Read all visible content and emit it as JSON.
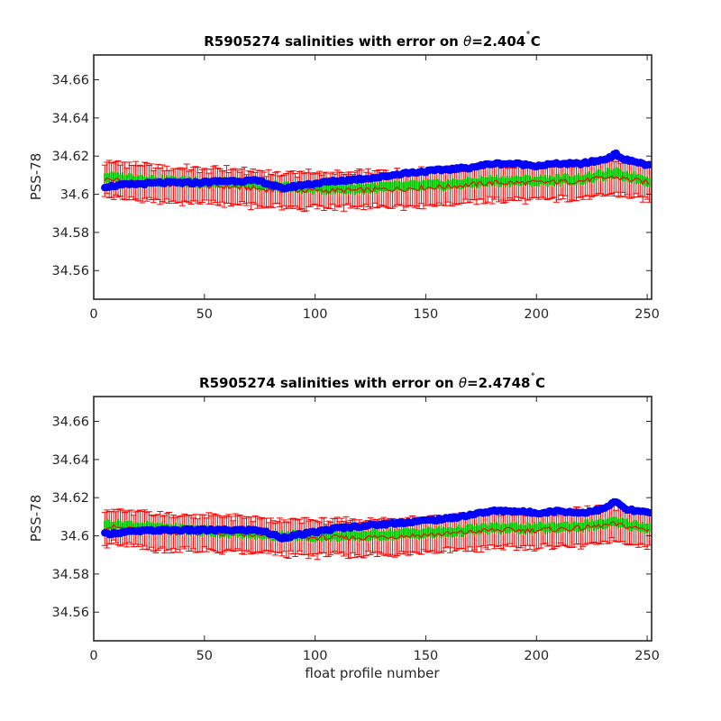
{
  "chart_data": [
    {
      "type": "scatter",
      "title_prefix": "R5905274 salinities with error on ",
      "title_theta": "θ",
      "title_value": "=2.404",
      "title_degree": "˚",
      "title_unit": "C",
      "xlabel": "",
      "ylabel": "PSS-78",
      "xlim": [
        0,
        252
      ],
      "ylim": [
        34.545,
        34.673
      ],
      "xticks": [
        0,
        50,
        100,
        150,
        200,
        250
      ],
      "yticks": [
        34.56,
        34.58,
        34.6,
        34.62,
        34.64,
        34.66
      ],
      "ytick_labels": [
        "34.56",
        "34.58",
        "34.6",
        "34.62",
        "34.64",
        "34.66"
      ],
      "grid": false,
      "x_range": [
        5,
        251
      ],
      "series": [
        {
          "role": "float",
          "color": "#0000ff",
          "x_control": [
            5,
            15,
            30,
            45,
            60,
            75,
            85,
            95,
            110,
            120,
            130,
            140,
            150,
            160,
            170,
            180,
            190,
            200,
            210,
            220,
            230,
            236,
            240,
            245,
            251
          ],
          "y_control": [
            34.604,
            34.605,
            34.606,
            34.606,
            34.607,
            34.607,
            34.603,
            34.605,
            34.607,
            34.608,
            34.609,
            34.611,
            34.612,
            34.613,
            34.614,
            34.616,
            34.616,
            34.615,
            34.616,
            34.616,
            34.618,
            34.621,
            34.618,
            34.617,
            34.615
          ]
        },
        {
          "role": "mapped",
          "color": "#ff0000",
          "x_control": [
            5,
            30,
            60,
            85,
            100,
            120,
            140,
            160,
            180,
            200,
            220,
            235,
            251
          ],
          "y_control": [
            34.608,
            34.605,
            34.604,
            34.602,
            34.602,
            34.602,
            34.603,
            34.604,
            34.606,
            34.606,
            34.607,
            34.609,
            34.606
          ],
          "error": 0.009
        },
        {
          "role": "mapped-uncertainty",
          "color": "#00cc00",
          "x_control": [
            5,
            30,
            60,
            85,
            100,
            120,
            140,
            160,
            180,
            200,
            220,
            235,
            251
          ],
          "y_control": [
            34.609,
            34.607,
            34.606,
            34.604,
            34.603,
            34.603,
            34.604,
            34.605,
            34.607,
            34.607,
            34.608,
            34.611,
            34.607
          ],
          "error": 0.0025
        }
      ]
    },
    {
      "type": "scatter",
      "title_prefix": "R5905274 salinities with error on ",
      "title_theta": "θ",
      "title_value": "=2.4748",
      "title_degree": "˚",
      "title_unit": "C",
      "xlabel": "float profile number",
      "ylabel": "PSS-78",
      "xlim": [
        0,
        252
      ],
      "ylim": [
        34.545,
        34.673
      ],
      "xticks": [
        0,
        50,
        100,
        150,
        200,
        250
      ],
      "yticks": [
        34.56,
        34.58,
        34.6,
        34.62,
        34.64,
        34.66
      ],
      "ytick_labels": [
        "34.56",
        "34.58",
        "34.6",
        "34.62",
        "34.64",
        "34.66"
      ],
      "grid": false,
      "x_range": [
        5,
        251
      ],
      "series": [
        {
          "role": "float",
          "color": "#0000ff",
          "x_control": [
            5,
            15,
            30,
            45,
            60,
            75,
            85,
            95,
            110,
            120,
            130,
            140,
            150,
            160,
            170,
            180,
            190,
            200,
            210,
            220,
            230,
            236,
            240,
            245,
            251
          ],
          "y_control": [
            34.601,
            34.602,
            34.603,
            34.603,
            34.603,
            34.603,
            34.599,
            34.601,
            34.604,
            34.605,
            34.606,
            34.607,
            34.608,
            34.609,
            34.611,
            34.613,
            34.613,
            34.612,
            34.613,
            34.612,
            34.614,
            34.618,
            34.614,
            34.613,
            34.612
          ]
        },
        {
          "role": "mapped",
          "color": "#ff0000",
          "x_control": [
            5,
            30,
            60,
            85,
            100,
            120,
            140,
            160,
            180,
            200,
            220,
            235,
            251
          ],
          "y_control": [
            34.605,
            34.602,
            34.601,
            34.599,
            34.599,
            34.599,
            34.6,
            34.601,
            34.603,
            34.603,
            34.604,
            34.606,
            34.603
          ],
          "error": 0.009
        },
        {
          "role": "mapped-uncertainty",
          "color": "#00cc00",
          "x_control": [
            5,
            30,
            60,
            85,
            100,
            120,
            140,
            160,
            180,
            200,
            220,
            235,
            251
          ],
          "y_control": [
            34.606,
            34.604,
            34.602,
            34.6,
            34.6,
            34.6,
            34.601,
            34.602,
            34.604,
            34.604,
            34.605,
            34.607,
            34.604
          ],
          "error": 0.0025
        }
      ]
    }
  ]
}
